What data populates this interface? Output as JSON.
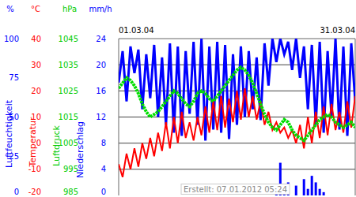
{
  "chart_data": {
    "type": "line",
    "x": [
      1,
      1.5,
      2,
      2.5,
      3,
      3.5,
      4,
      4.5,
      5,
      5.5,
      6,
      6.5,
      7,
      7.5,
      8,
      8.5,
      9,
      9.5,
      10,
      10.5,
      11,
      11.5,
      12,
      12.5,
      13,
      13.5,
      14,
      14.5,
      15,
      15.5,
      16,
      16.5,
      17,
      17.5,
      18,
      18.5,
      19,
      19.5,
      20,
      20.5,
      21,
      21.5,
      22,
      22.5,
      23,
      23.5,
      24,
      24.5,
      25,
      25.5,
      26,
      26.5,
      27,
      27.5,
      28,
      28.5,
      29,
      29.5,
      30,
      30.5,
      31
    ],
    "xlim": [
      1,
      31
    ],
    "xticks": [
      {
        "value": 1,
        "label": "01.03.04"
      },
      {
        "value": 31,
        "label": "31.03.04"
      }
    ],
    "axes": [
      {
        "unit": "%",
        "title": "Luftfeuchtigkeit",
        "color": "#0000ff",
        "ylim": [
          0,
          100
        ],
        "yticks": [
          0,
          25,
          50,
          75,
          100
        ]
      },
      {
        "unit": "°C",
        "title": "Temperatur",
        "color": "#ff0000",
        "ylim": [
          -20,
          40
        ],
        "yticks": [
          -20,
          -10,
          0,
          10,
          20,
          30,
          40
        ]
      },
      {
        "unit": "hPa",
        "title": "Luftdruck",
        "color": "#00cc00",
        "ylim": [
          985,
          1045
        ],
        "yticks": [
          985,
          995,
          1005,
          1015,
          1025,
          1035,
          1045
        ]
      },
      {
        "unit": "mm/h",
        "title": "Niederschlag",
        "color": "#0000ff",
        "ylim": [
          0,
          24
        ],
        "yticks": [
          0,
          4,
          8,
          12,
          16,
          20,
          24
        ]
      }
    ],
    "grid": true,
    "annotations": [
      "Erstellt: 07.01.2012 05:24"
    ],
    "series": [
      {
        "name": "Luftfeuchtigkeit",
        "type": "line",
        "axis": 0,
        "color": "#0000ff",
        "values": [
          72,
          92,
          60,
          95,
          78,
          93,
          55,
          90,
          62,
          96,
          50,
          88,
          45,
          97,
          40,
          95,
          38,
          92,
          52,
          98,
          45,
          100,
          35,
          95,
          42,
          98,
          40,
          96,
          36,
          90,
          45,
          95,
          50,
          92,
          55,
          88,
          48,
          97,
          70,
          100,
          85,
          100,
          90,
          98,
          80,
          100,
          75,
          95,
          55,
          96,
          45,
          98,
          40,
          92,
          50,
          100,
          42,
          95,
          38,
          97,
          60
        ]
      },
      {
        "name": "Temperatur",
        "type": "line",
        "axis": 1,
        "color": "#ff0000",
        "values": [
          -8,
          -13,
          -4,
          -10,
          -2,
          -9,
          0,
          -6,
          2,
          -5,
          4,
          -3,
          8,
          -2,
          10,
          0,
          12,
          2,
          8,
          1,
          10,
          3,
          14,
          4,
          16,
          5,
          18,
          6,
          17,
          8,
          20,
          9,
          21,
          10,
          18,
          9,
          16,
          7,
          12,
          5,
          8,
          4,
          6,
          2,
          5,
          0,
          7,
          -2,
          10,
          0,
          12,
          2,
          14,
          3,
          15,
          5,
          12,
          4,
          16,
          6,
          18
        ]
      },
      {
        "name": "Luftdruck",
        "type": "line",
        "axis": 2,
        "color": "#00dd00",
        "values": [
          1026,
          1028,
          1030,
          1029,
          1027,
          1024,
          1020,
          1017,
          1015,
          1016,
          1017,
          1019,
          1021,
          1023,
          1025,
          1024,
          1022,
          1020,
          1019,
          1021,
          1024,
          1025,
          1024,
          1022,
          1021,
          1023,
          1025,
          1027,
          1029,
          1031,
          1033,
          1034,
          1033,
          1031,
          1028,
          1024,
          1020,
          1016,
          1013,
          1011,
          1010,
          1012,
          1014,
          1013,
          1010,
          1008,
          1007,
          1006,
          1008,
          1010,
          1012,
          1014,
          1015,
          1016,
          1015,
          1013,
          1012,
          1011,
          1012,
          1013,
          1011
        ]
      },
      {
        "name": "Niederschlag",
        "type": "bar",
        "axis": 3,
        "color": "#0000ff",
        "values": [
          0,
          0,
          0,
          0,
          0,
          0,
          0,
          0,
          0,
          0,
          0,
          0,
          0,
          0,
          0,
          0,
          0,
          0,
          0,
          0,
          0,
          0,
          0,
          0,
          0,
          0,
          0,
          0,
          0,
          0,
          0,
          0,
          0,
          0,
          0,
          0,
          0,
          0,
          0,
          0,
          0.5,
          5,
          1,
          2,
          0,
          1.5,
          0,
          2.5,
          1,
          3,
          2,
          1,
          0.5,
          0,
          0,
          0,
          0,
          0,
          0,
          0,
          0
        ]
      }
    ]
  }
}
